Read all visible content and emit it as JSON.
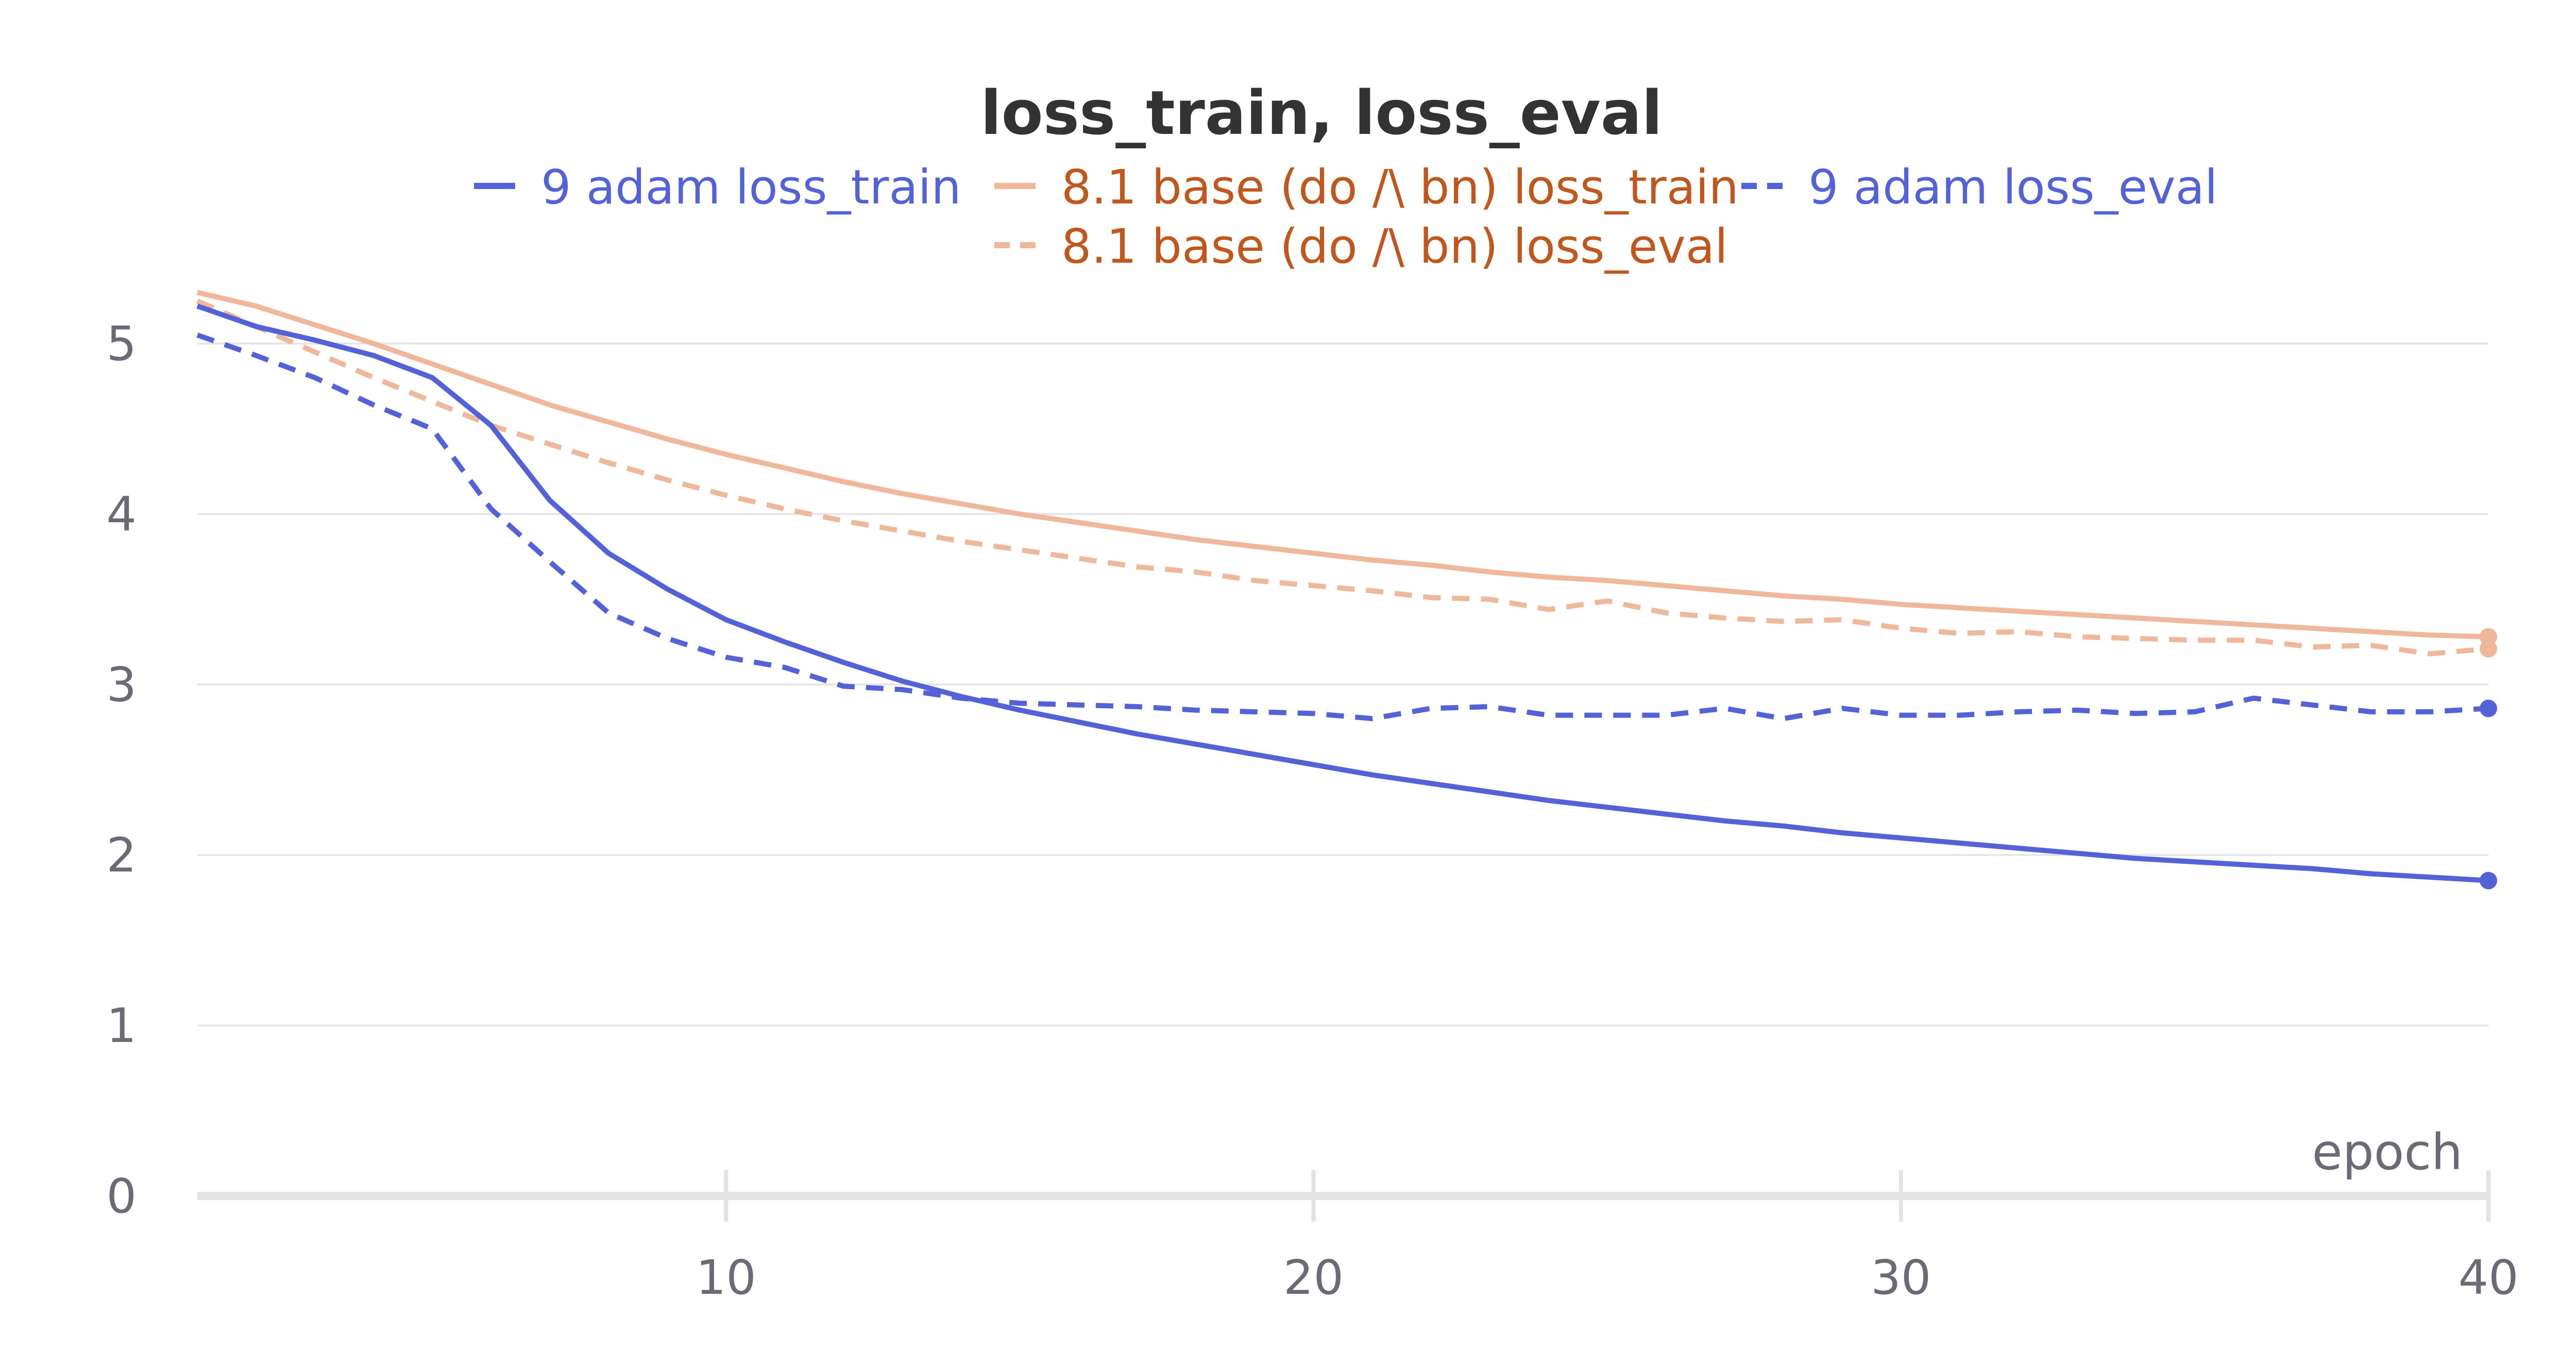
{
  "chart_data": {
    "type": "line",
    "title": "loss_train, loss_eval",
    "xlabel": "epoch",
    "ylabel": "",
    "xlim": [
      1,
      40
    ],
    "ylim": [
      0,
      5.5
    ],
    "x_ticks": [
      10,
      20,
      30,
      40
    ],
    "y_ticks": [
      0,
      1,
      2,
      3,
      4,
      5
    ],
    "grid": true,
    "legend_position": "top",
    "x": [
      1,
      2,
      3,
      4,
      5,
      6,
      7,
      8,
      9,
      10,
      11,
      12,
      13,
      14,
      15,
      16,
      17,
      18,
      19,
      20,
      21,
      22,
      23,
      24,
      25,
      26,
      27,
      28,
      29,
      30,
      31,
      32,
      33,
      34,
      35,
      36,
      37,
      38,
      39,
      40
    ],
    "series": [
      {
        "name": "9 adam loss_train",
        "color": "#5462d8",
        "dash": "solid",
        "values": [
          5.22,
          5.1,
          5.02,
          4.93,
          4.8,
          4.52,
          4.08,
          3.77,
          3.56,
          3.38,
          3.25,
          3.13,
          3.02,
          2.93,
          2.85,
          2.78,
          2.71,
          2.65,
          2.59,
          2.53,
          2.47,
          2.42,
          2.37,
          2.32,
          2.28,
          2.24,
          2.2,
          2.17,
          2.13,
          2.1,
          2.07,
          2.04,
          2.01,
          1.98,
          1.96,
          1.94,
          1.92,
          1.89,
          1.87,
          1.85
        ]
      },
      {
        "name": "8.1 base (do /\\ bn) loss_train",
        "color": "#f0b89a",
        "dash": "solid",
        "values": [
          5.3,
          5.22,
          5.11,
          5.0,
          4.88,
          4.76,
          4.64,
          4.54,
          4.44,
          4.35,
          4.27,
          4.19,
          4.12,
          4.06,
          4.0,
          3.95,
          3.9,
          3.85,
          3.81,
          3.77,
          3.73,
          3.7,
          3.66,
          3.63,
          3.61,
          3.58,
          3.55,
          3.52,
          3.5,
          3.47,
          3.45,
          3.43,
          3.41,
          3.39,
          3.37,
          3.35,
          3.33,
          3.31,
          3.29,
          3.28
        ]
      },
      {
        "name": "9 adam loss_eval",
        "color": "#5462d8",
        "dash": "dashed",
        "values": [
          5.05,
          4.93,
          4.8,
          4.64,
          4.5,
          4.03,
          3.72,
          3.42,
          3.27,
          3.16,
          3.1,
          2.99,
          2.97,
          2.92,
          2.89,
          2.88,
          2.87,
          2.85,
          2.84,
          2.83,
          2.8,
          2.86,
          2.87,
          2.82,
          2.82,
          2.82,
          2.86,
          2.8,
          2.86,
          2.82,
          2.82,
          2.84,
          2.85,
          2.83,
          2.84,
          2.92,
          2.88,
          2.84,
          2.84,
          2.86
        ]
      },
      {
        "name": "8.1 base (do /\\ bn) loss_eval",
        "color": "#f0b89a",
        "dash": "dashed",
        "values": [
          5.25,
          5.1,
          4.95,
          4.8,
          4.66,
          4.52,
          4.41,
          4.3,
          4.2,
          4.11,
          4.03,
          3.96,
          3.9,
          3.84,
          3.79,
          3.74,
          3.69,
          3.66,
          3.61,
          3.58,
          3.55,
          3.51,
          3.5,
          3.44,
          3.49,
          3.42,
          3.39,
          3.37,
          3.38,
          3.33,
          3.3,
          3.31,
          3.28,
          3.27,
          3.26,
          3.26,
          3.22,
          3.23,
          3.18,
          3.21
        ]
      }
    ]
  }
}
